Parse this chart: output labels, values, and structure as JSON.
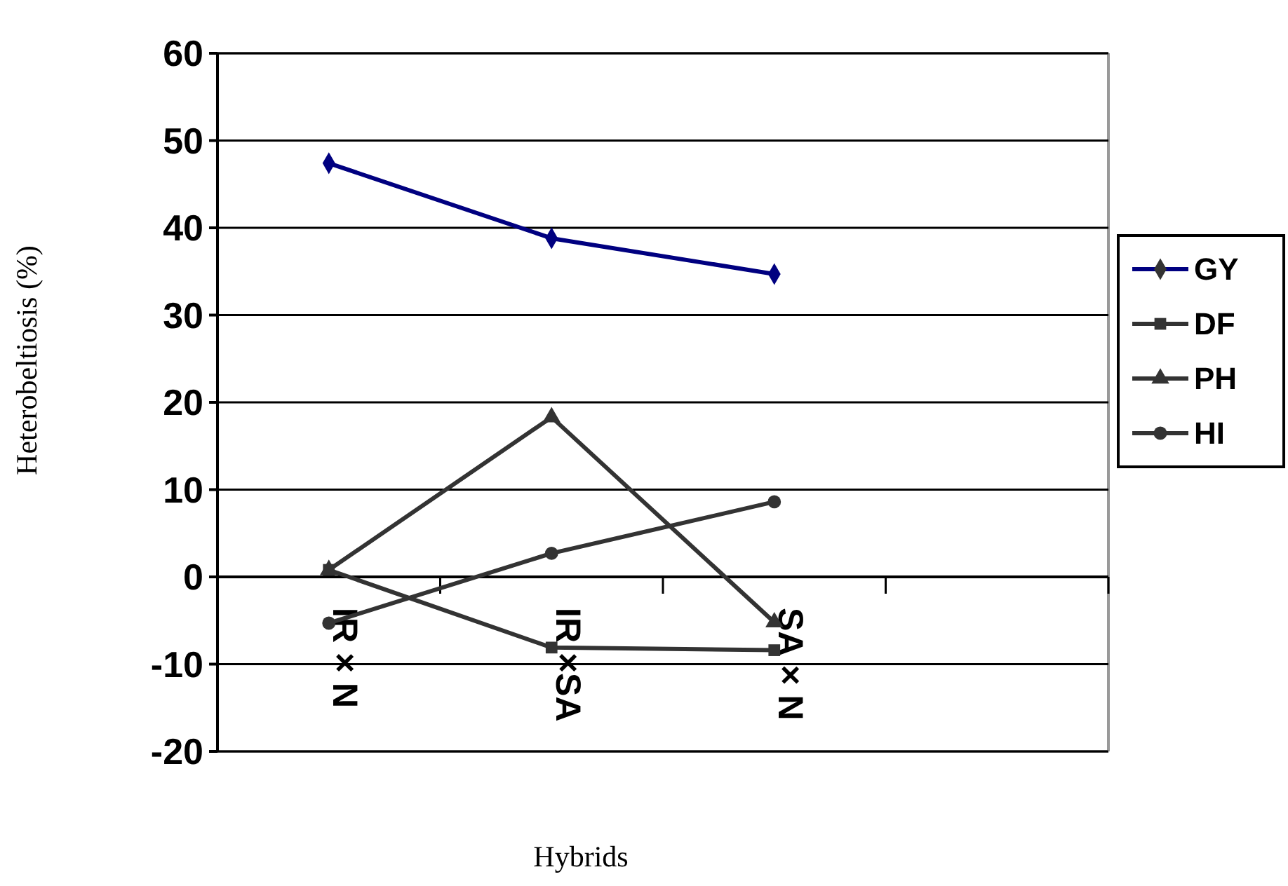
{
  "chart_data": {
    "type": "line",
    "xlabel": "Hybrids",
    "ylabel": "Heterobeltiosis (%)",
    "categories": [
      "IR × N",
      "IR ×SA",
      "SA × N",
      null
    ],
    "ylim": [
      -20,
      60
    ],
    "yticks": [
      -20,
      -10,
      0,
      10,
      20,
      30,
      40,
      50,
      60
    ],
    "grid": "y",
    "legend": "right",
    "series": [
      {
        "name": "GY",
        "color": "#000080",
        "marker": "diamond",
        "values": [
          47.4,
          38.8,
          34.7,
          null
        ]
      },
      {
        "name": "DF",
        "color": "#333333",
        "marker": "square",
        "values": [
          0.8,
          -8.1,
          -8.4,
          null
        ]
      },
      {
        "name": "PH",
        "color": "#333333",
        "marker": "triangle",
        "values": [
          0.8,
          18.3,
          -5.2,
          null
        ]
      },
      {
        "name": "HI",
        "color": "#333333",
        "marker": "circle",
        "values": [
          -5.3,
          2.7,
          8.6,
          null
        ]
      }
    ]
  }
}
